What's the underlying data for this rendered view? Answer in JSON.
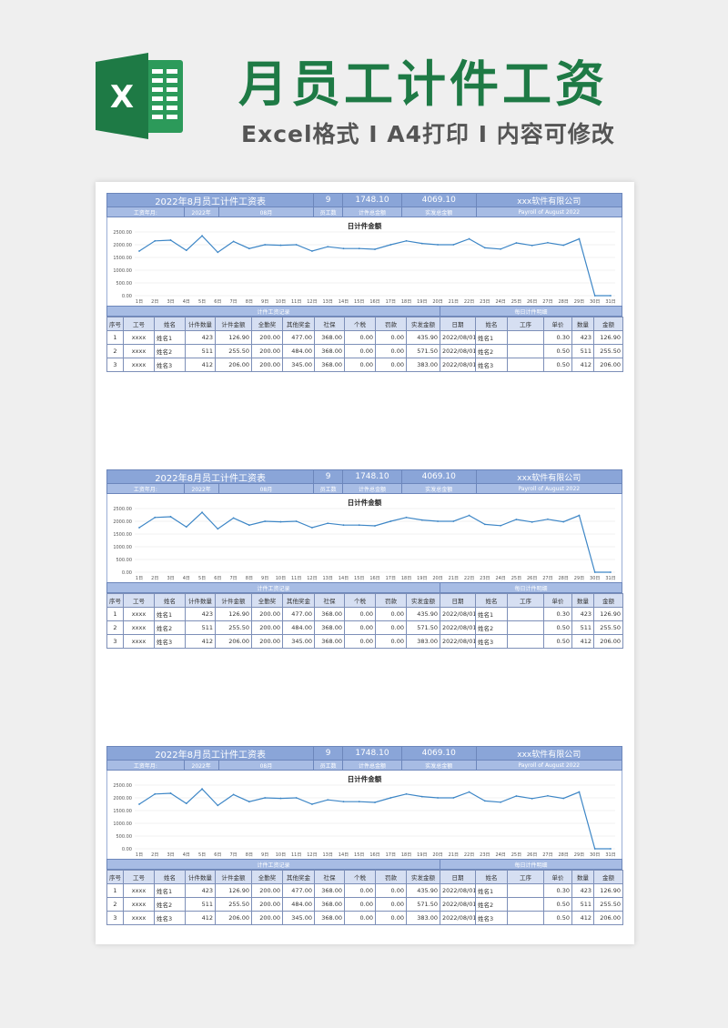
{
  "header": {
    "title": "月员工计件工资",
    "subtitle": "Excel格式 I A4打印 I 内容可修改",
    "logo_letter": "X",
    "colors": {
      "brand": "#1e7a45",
      "header_blue": "#8aa5d8",
      "line": "#3d86c6"
    }
  },
  "sheet": {
    "title": "2022年8月员工计件工资表",
    "employee_count": "9",
    "total_piece_amount": "1748.10",
    "total_actual": "4069.10",
    "company": "xxx软件有限公司",
    "wage_month_label": "工资年月:",
    "year": "2022年",
    "month": "08月",
    "employee_count_label": "员工数",
    "total_piece_label": "计件总金额",
    "total_actual_label": "实发总金额",
    "payroll_en": "Payroll of August 2022",
    "section_left": "计件工资记录",
    "section_right": "每日计件明细",
    "columns": [
      "序号",
      "工号",
      "姓名",
      "计件数量",
      "计件金额",
      "全勤奖",
      "其他奖金",
      "社保",
      "个税",
      "罚款",
      "实发金额",
      "日期",
      "姓名",
      "工序",
      "单价",
      "数量",
      "金额"
    ],
    "rows": [
      [
        "1",
        "xxxx",
        "姓名1",
        "423",
        "126.90",
        "200.00",
        "477.00",
        "368.00",
        "0.00",
        "0.00",
        "435.90",
        "2022/08/01",
        "姓名1",
        "",
        "0.30",
        "423",
        "126.90"
      ],
      [
        "2",
        "xxxx",
        "姓名2",
        "511",
        "255.50",
        "200.00",
        "484.00",
        "368.00",
        "0.00",
        "0.00",
        "571.50",
        "2022/08/01",
        "姓名2",
        "",
        "0.50",
        "511",
        "255.50"
      ],
      [
        "3",
        "xxxx",
        "姓名3",
        "412",
        "206.00",
        "200.00",
        "345.00",
        "368.00",
        "0.00",
        "0.00",
        "383.00",
        "2022/08/01",
        "姓名3",
        "",
        "0.50",
        "412",
        "206.00"
      ]
    ]
  },
  "chart_data": {
    "type": "line",
    "title": "日计件金额",
    "categories": [
      "1日",
      "2日",
      "3日",
      "4日",
      "5日",
      "6日",
      "7日",
      "8日",
      "9日",
      "10日",
      "11日",
      "12日",
      "13日",
      "14日",
      "15日",
      "16日",
      "17日",
      "18日",
      "19日",
      "20日",
      "21日",
      "22日",
      "23日",
      "24日",
      "25日",
      "26日",
      "27日",
      "28日",
      "29日",
      "30日",
      "31日"
    ],
    "values": [
      1750,
      2150,
      2180,
      1780,
      2350,
      1700,
      2130,
      1850,
      2000,
      1980,
      2000,
      1750,
      1920,
      1850,
      1850,
      1820,
      2000,
      2150,
      2050,
      2000,
      2000,
      2230,
      1880,
      1830,
      2070,
      1970,
      2080,
      1980,
      2230,
      0,
      0
    ],
    "yticks": [
      "2500.00",
      "2000.00",
      "1500.00",
      "1000.00",
      "500.00",
      "0.00"
    ],
    "ylim": [
      0,
      2500
    ],
    "grid": true
  }
}
